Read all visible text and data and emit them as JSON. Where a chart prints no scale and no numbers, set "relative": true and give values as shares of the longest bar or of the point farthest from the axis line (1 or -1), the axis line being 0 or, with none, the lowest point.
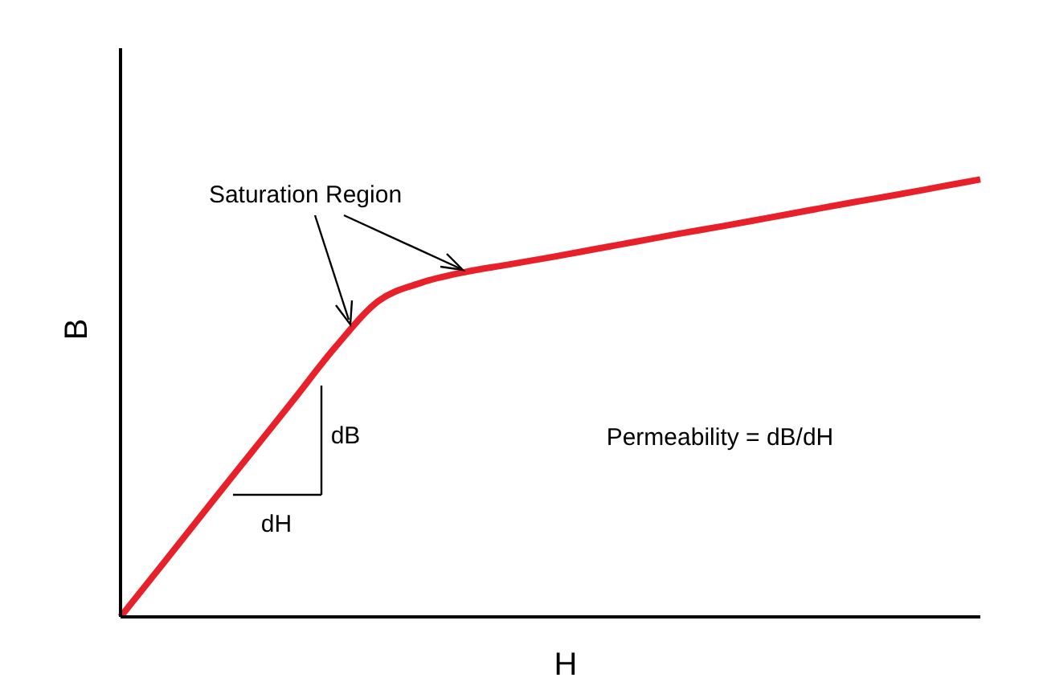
{
  "chart_data": {
    "type": "line",
    "relative": true,
    "xlabel": "H",
    "ylabel": "B",
    "categories": [
      null,
      null,
      null,
      null,
      null,
      null,
      null,
      null,
      null,
      null,
      null,
      null,
      null,
      null,
      null,
      null,
      null,
      null,
      null,
      null,
      null
    ],
    "series": [
      {
        "color": "#e8202a",
        "values": [
          0,
          0.123,
          0.247,
          0.37,
          0.493,
          0.617,
          0.722,
          0.764,
          0.788,
          0.805,
          0.822,
          0.84,
          0.858,
          0.876,
          0.893,
          0.911,
          0.929,
          0.947,
          0.964,
          0.982,
          1
        ]
      }
    ],
    "annotations": [
      "Saturation Region",
      "dB",
      "dH",
      "Permeability = dB/dH"
    ],
    "grid": false,
    "marker": "none",
    "line_style": "solid"
  }
}
